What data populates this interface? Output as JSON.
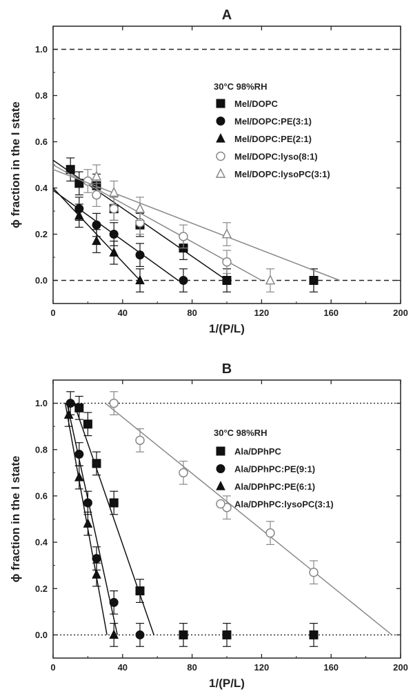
{
  "chart_data": [
    {
      "type": "scatter",
      "title": "A",
      "xlabel": "1/(P/L)",
      "ylabel": "ϕ fraction in the I state",
      "xlim": [
        0,
        200
      ],
      "ylim": [
        -0.1,
        1.1
      ],
      "xticks": [
        "0",
        "40",
        "80",
        "120",
        "160",
        "200"
      ],
      "yticks": [
        "0.0",
        "0.2",
        "0.4",
        "0.6",
        "0.8",
        "1.0"
      ],
      "condition": "30°C 98%RH",
      "legend_position": "right",
      "reference_lines": [
        {
          "y": 1.0,
          "style": "dashed"
        },
        {
          "y": 0.0,
          "style": "dashed"
        }
      ],
      "series": [
        {
          "name": "Mel/DOPC",
          "marker": "square",
          "filled": true,
          "color": "#111111",
          "x": [
            10,
            15,
            25,
            35,
            50,
            75,
            100,
            150
          ],
          "y": [
            0.48,
            0.42,
            0.41,
            0.31,
            0.24,
            0.14,
            0.0,
            0.0
          ],
          "err": [
            0.05,
            0.05,
            0.05,
            0.05,
            0.05,
            0.05,
            0.05,
            0.05
          ],
          "fit": [
            [
              0,
              0.52
            ],
            [
              100,
              0.0
            ]
          ]
        },
        {
          "name": "Mel/DOPC:PE(3:1)",
          "marker": "circle",
          "filled": true,
          "color": "#111111",
          "x": [
            15,
            25,
            35,
            50,
            75
          ],
          "y": [
            0.31,
            0.24,
            0.2,
            0.11,
            0.0
          ],
          "err": [
            0.05,
            0.05,
            0.05,
            0.05,
            0.05
          ],
          "fit": [
            [
              0,
              0.39
            ],
            [
              72,
              0.0
            ]
          ]
        },
        {
          "name": "Mel/DOPC:PE(2:1)",
          "marker": "triangle",
          "filled": true,
          "color": "#111111",
          "x": [
            15,
            25,
            35,
            50
          ],
          "y": [
            0.28,
            0.17,
            0.12,
            0.0
          ],
          "err": [
            0.05,
            0.05,
            0.05,
            0.05
          ],
          "fit": [
            [
              0,
              0.4
            ],
            [
              50,
              0.0
            ]
          ]
        },
        {
          "name": "Mel/DOPC:lyso(8:1)",
          "marker": "circle",
          "filled": false,
          "color": "#888888",
          "x": [
            20,
            25,
            35,
            50,
            75,
            100
          ],
          "y": [
            0.43,
            0.37,
            0.31,
            0.25,
            0.19,
            0.08
          ],
          "err": [
            0.05,
            0.05,
            0.05,
            0.05,
            0.05,
            0.05
          ],
          "fit": [
            [
              0,
              0.5
            ],
            [
              120,
              0.0
            ]
          ]
        },
        {
          "name": "Mel/DOPC:lysoPC(3:1)",
          "marker": "triangle",
          "filled": false,
          "color": "#888888",
          "x": [
            25,
            35,
            50,
            100,
            125
          ],
          "y": [
            0.45,
            0.38,
            0.31,
            0.2,
            0.0
          ],
          "err": [
            0.05,
            0.05,
            0.05,
            0.05,
            0.05
          ],
          "fit": [
            [
              0,
              0.48
            ],
            [
              165,
              0.0
            ]
          ]
        }
      ]
    },
    {
      "type": "scatter",
      "title": "B",
      "xlabel": "1/(P/L)",
      "ylabel": "ϕ fraction in the I state",
      "xlim": [
        0,
        200
      ],
      "ylim": [
        -0.1,
        1.1
      ],
      "xticks": [
        "0",
        "40",
        "80",
        "120",
        "160",
        "200"
      ],
      "yticks": [
        "0.0",
        "0.2",
        "0.4",
        "0.6",
        "0.8",
        "1.0"
      ],
      "condition": "30°C 98%RH",
      "legend_position": "right",
      "reference_lines": [
        {
          "y": 1.0,
          "style": "dotted"
        },
        {
          "y": 0.0,
          "style": "dotted"
        }
      ],
      "series": [
        {
          "name": "Ala/DPhPC",
          "marker": "square",
          "filled": true,
          "color": "#111111",
          "x": [
            15,
            20,
            25,
            35,
            50,
            75,
            100,
            150
          ],
          "y": [
            0.98,
            0.91,
            0.74,
            0.57,
            0.19,
            0.0,
            0.0,
            0.0
          ],
          "err": [
            0.05,
            0.05,
            0.05,
            0.05,
            0.05,
            0.05,
            0.05,
            0.05
          ],
          "fit": [
            [
              12,
              1.0
            ],
            [
              58,
              0.0
            ]
          ]
        },
        {
          "name": "Ala/DPhPC:PE(9:1)",
          "marker": "circle",
          "filled": true,
          "color": "#111111",
          "x": [
            10,
            15,
            20,
            25,
            35,
            50
          ],
          "y": [
            1.0,
            0.78,
            0.57,
            0.33,
            0.14,
            0.0
          ],
          "err": [
            0.05,
            0.05,
            0.05,
            0.05,
            0.05,
            0.05
          ],
          "fit": [
            [
              8,
              1.0
            ],
            [
              37,
              0.0
            ]
          ]
        },
        {
          "name": "Ala/DPhPC:PE(6:1)",
          "marker": "triangle",
          "filled": true,
          "color": "#111111",
          "x": [
            9,
            15,
            20,
            25,
            35
          ],
          "y": [
            0.95,
            0.68,
            0.48,
            0.26,
            0.0
          ],
          "err": [
            0.05,
            0.05,
            0.05,
            0.05,
            0.05
          ],
          "fit": [
            [
              7,
              1.0
            ],
            [
              31,
              0.0
            ]
          ]
        },
        {
          "name": "Ala/DPhPC:lysoPC(3:1)",
          "marker": "circle",
          "filled": false,
          "color": "#888888",
          "x": [
            35,
            50,
            75,
            100,
            125,
            150
          ],
          "y": [
            1.0,
            0.84,
            0.7,
            0.55,
            0.44,
            0.27
          ],
          "err": [
            0.05,
            0.05,
            0.05,
            0.05,
            0.05,
            0.05
          ],
          "fit": [
            [
              30,
              1.0
            ],
            [
              195,
              0.0
            ]
          ]
        }
      ]
    }
  ]
}
